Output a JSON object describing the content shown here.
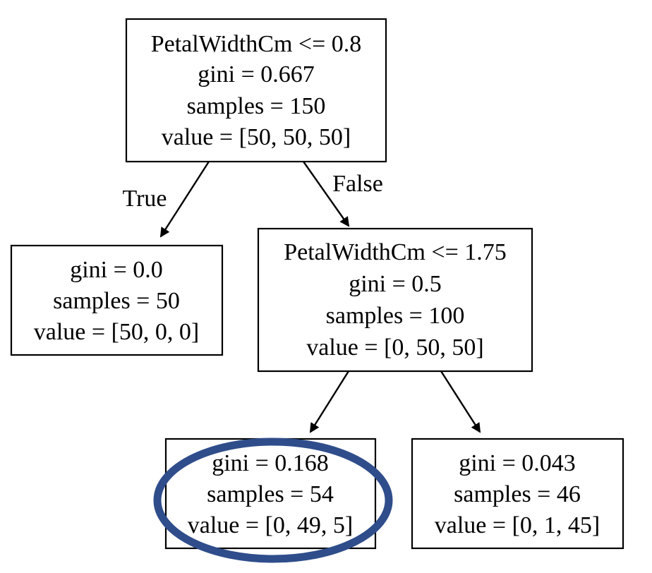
{
  "tree": {
    "root": {
      "split": "PetalWidthCm <= 0.8",
      "gini": "gini = 0.667",
      "samples": "samples = 150",
      "value": "value = [50, 50, 50]"
    },
    "left_leaf": {
      "gini": "gini = 0.0",
      "samples": "samples = 50",
      "value": "value = [50, 0, 0]"
    },
    "internal": {
      "split": "PetalWidthCm <= 1.75",
      "gini": "gini = 0.5",
      "samples": "samples = 100",
      "value": "value = [0, 50, 50]"
    },
    "leaf_a": {
      "gini": "gini = 0.168",
      "samples": "samples = 54",
      "value": "value = [0, 49, 5]"
    },
    "leaf_b": {
      "gini": "gini = 0.043",
      "samples": "samples = 46",
      "value": "value = [0, 1, 45]"
    }
  },
  "edges": {
    "true_label": "True",
    "false_label": "False"
  },
  "colors": {
    "highlight": "#2f4d8b",
    "stroke": "#000000"
  }
}
